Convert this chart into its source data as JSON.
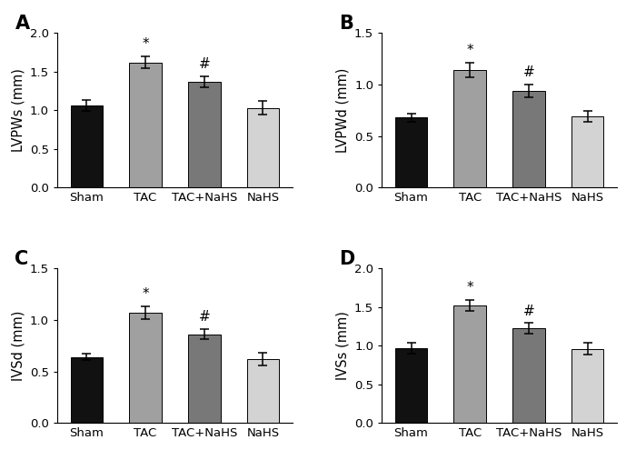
{
  "panels": [
    {
      "label": "A",
      "ylabel": "LVPWs (mm)",
      "ylim": [
        0,
        2.0
      ],
      "yticks": [
        0.0,
        0.5,
        1.0,
        1.5,
        2.0
      ],
      "categories": [
        "Sham",
        "TAC",
        "TAC+NaHS",
        "NaHS"
      ],
      "values": [
        1.06,
        1.62,
        1.37,
        1.03
      ],
      "errors": [
        0.07,
        0.08,
        0.07,
        0.09
      ],
      "sig_stars": [
        "",
        "*",
        "#",
        ""
      ],
      "colors": [
        "#111111",
        "#a0a0a0",
        "#787878",
        "#d3d3d3"
      ]
    },
    {
      "label": "B",
      "ylabel": "LVPWd (mm)",
      "ylim": [
        0,
        1.5
      ],
      "yticks": [
        0.0,
        0.5,
        1.0,
        1.5
      ],
      "categories": [
        "Sham",
        "TAC",
        "TAC+NaHS",
        "NaHS"
      ],
      "values": [
        0.68,
        1.14,
        0.94,
        0.69
      ],
      "errors": [
        0.04,
        0.07,
        0.06,
        0.05
      ],
      "sig_stars": [
        "",
        "*",
        "#",
        ""
      ],
      "colors": [
        "#111111",
        "#a0a0a0",
        "#787878",
        "#d3d3d3"
      ]
    },
    {
      "label": "C",
      "ylabel": "IVSd (mm)",
      "ylim": [
        0,
        1.5
      ],
      "yticks": [
        0.0,
        0.5,
        1.0,
        1.5
      ],
      "categories": [
        "Sham",
        "TAC",
        "TAC+NaHS",
        "NaHS"
      ],
      "values": [
        0.64,
        1.07,
        0.86,
        0.62
      ],
      "errors": [
        0.03,
        0.06,
        0.05,
        0.06
      ],
      "sig_stars": [
        "",
        "*",
        "#",
        ""
      ],
      "colors": [
        "#111111",
        "#a0a0a0",
        "#787878",
        "#d3d3d3"
      ]
    },
    {
      "label": "D",
      "ylabel": "IVSs (mm)",
      "ylim": [
        0,
        2.0
      ],
      "yticks": [
        0.0,
        0.5,
        1.0,
        1.5,
        2.0
      ],
      "categories": [
        "Sham",
        "TAC",
        "TAC+NaHS",
        "NaHS"
      ],
      "values": [
        0.97,
        1.52,
        1.22,
        0.96
      ],
      "errors": [
        0.07,
        0.07,
        0.07,
        0.08
      ],
      "sig_stars": [
        "",
        "*",
        "#",
        ""
      ],
      "colors": [
        "#111111",
        "#a0a0a0",
        "#787878",
        "#d3d3d3"
      ]
    }
  ],
  "bar_width": 0.55,
  "background_color": "#ffffff",
  "tick_fontsize": 9.5,
  "label_fontsize": 10.5,
  "panel_label_fontsize": 15,
  "sig_fontsize": 11,
  "edge_color": "#000000"
}
